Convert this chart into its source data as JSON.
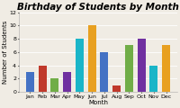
{
  "title": "Birthday of Students by Month",
  "xlabel": "Month",
  "ylabel": "Number of Students",
  "categories": [
    "Jan",
    "Feb",
    "Mar",
    "Apr",
    "May",
    "Jun",
    "Jul",
    "Aug",
    "Sep",
    "Oct",
    "Nov",
    "Dec"
  ],
  "values": [
    3,
    4,
    2,
    3,
    8,
    10,
    6,
    1,
    7,
    8,
    4,
    7
  ],
  "bar_colors": [
    "#4472c4",
    "#c0392b",
    "#70ad47",
    "#7030a0",
    "#1ab5c8",
    "#e8a020",
    "#4472c4",
    "#c0392b",
    "#70ad47",
    "#7030a0",
    "#1ab5c8",
    "#e8a020"
  ],
  "ylim": [
    0,
    12
  ],
  "yticks": [
    0,
    2,
    4,
    6,
    8,
    10,
    12
  ],
  "title_fontsize": 7.5,
  "label_fontsize": 5,
  "tick_fontsize": 4.5,
  "background_color": "#f0ece4",
  "grid_color": "#ffffff"
}
